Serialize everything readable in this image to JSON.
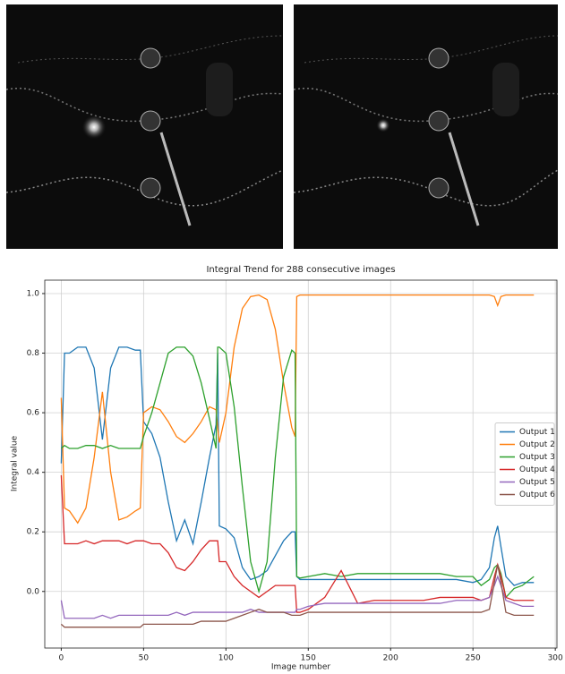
{
  "chart_data": {
    "type": "line",
    "title": "Integral Trend for 288 consecutive images",
    "xlabel": "Image number",
    "ylabel": "Integral value",
    "x": [
      0,
      2,
      5,
      10,
      15,
      20,
      25,
      30,
      35,
      40,
      45,
      48,
      50,
      55,
      60,
      65,
      70,
      75,
      80,
      85,
      90,
      94,
      95,
      96,
      100,
      105,
      110,
      115,
      120,
      125,
      130,
      135,
      140,
      142,
      143,
      145,
      150,
      160,
      170,
      180,
      190,
      200,
      210,
      220,
      230,
      240,
      250,
      255,
      260,
      263,
      265,
      267,
      270,
      275,
      280,
      287
    ],
    "series": [
      {
        "name": "Output 1",
        "color": "#1f77b4",
        "values": [
          0.43,
          0.8,
          0.8,
          0.82,
          0.82,
          0.75,
          0.51,
          0.75,
          0.82,
          0.82,
          0.81,
          0.81,
          0.57,
          0.53,
          0.45,
          0.3,
          0.17,
          0.24,
          0.16,
          0.3,
          0.45,
          0.56,
          0.8,
          0.22,
          0.21,
          0.18,
          0.08,
          0.04,
          0.05,
          0.07,
          0.12,
          0.17,
          0.2,
          0.2,
          0.05,
          0.04,
          0.04,
          0.04,
          0.04,
          0.04,
          0.04,
          0.04,
          0.04,
          0.04,
          0.04,
          0.04,
          0.03,
          0.04,
          0.08,
          0.18,
          0.22,
          0.15,
          0.05,
          0.02,
          0.03,
          0.03
        ]
      },
      {
        "name": "Output 2",
        "color": "#ff7f0e",
        "values": [
          0.65,
          0.28,
          0.27,
          0.23,
          0.28,
          0.45,
          0.67,
          0.4,
          0.24,
          0.25,
          0.27,
          0.28,
          0.6,
          0.62,
          0.61,
          0.57,
          0.52,
          0.5,
          0.53,
          0.57,
          0.62,
          0.61,
          0.55,
          0.5,
          0.6,
          0.82,
          0.95,
          0.99,
          0.995,
          0.98,
          0.88,
          0.7,
          0.55,
          0.52,
          0.99,
          0.995,
          0.995,
          0.995,
          0.995,
          0.995,
          0.995,
          0.995,
          0.995,
          0.995,
          0.995,
          0.995,
          0.995,
          0.995,
          0.995,
          0.99,
          0.96,
          0.99,
          0.995,
          0.995,
          0.995,
          0.995
        ]
      },
      {
        "name": "Output 3",
        "color": "#2ca02c",
        "values": [
          0.48,
          0.49,
          0.48,
          0.48,
          0.49,
          0.49,
          0.48,
          0.49,
          0.48,
          0.48,
          0.48,
          0.48,
          0.52,
          0.6,
          0.7,
          0.8,
          0.82,
          0.82,
          0.79,
          0.7,
          0.58,
          0.48,
          0.82,
          0.82,
          0.8,
          0.62,
          0.35,
          0.1,
          0.0,
          0.1,
          0.45,
          0.72,
          0.81,
          0.8,
          0.05,
          0.045,
          0.05,
          0.06,
          0.05,
          0.06,
          0.06,
          0.06,
          0.06,
          0.06,
          0.06,
          0.05,
          0.05,
          0.02,
          0.04,
          0.08,
          0.09,
          0.06,
          -0.02,
          0.01,
          0.02,
          0.05
        ]
      },
      {
        "name": "Output 4",
        "color": "#d62728",
        "values": [
          0.39,
          0.16,
          0.16,
          0.16,
          0.17,
          0.16,
          0.17,
          0.17,
          0.17,
          0.16,
          0.17,
          0.17,
          0.17,
          0.16,
          0.16,
          0.13,
          0.08,
          0.07,
          0.1,
          0.14,
          0.17,
          0.17,
          0.17,
          0.1,
          0.1,
          0.05,
          0.02,
          0.0,
          -0.02,
          0.0,
          0.02,
          0.02,
          0.02,
          0.02,
          -0.07,
          -0.07,
          -0.06,
          -0.02,
          0.07,
          -0.04,
          -0.03,
          -0.03,
          -0.03,
          -0.03,
          -0.02,
          -0.02,
          -0.02,
          -0.03,
          -0.02,
          0.05,
          0.09,
          0.05,
          -0.02,
          -0.03,
          -0.03,
          -0.03
        ]
      },
      {
        "name": "Output 5",
        "color": "#9467bd",
        "values": [
          -0.03,
          -0.09,
          -0.09,
          -0.09,
          -0.09,
          -0.09,
          -0.08,
          -0.09,
          -0.08,
          -0.08,
          -0.08,
          -0.08,
          -0.08,
          -0.08,
          -0.08,
          -0.08,
          -0.07,
          -0.08,
          -0.07,
          -0.07,
          -0.07,
          -0.07,
          -0.07,
          -0.07,
          -0.07,
          -0.07,
          -0.07,
          -0.06,
          -0.07,
          -0.07,
          -0.07,
          -0.07,
          -0.07,
          -0.07,
          -0.06,
          -0.06,
          -0.05,
          -0.04,
          -0.04,
          -0.04,
          -0.04,
          -0.04,
          -0.04,
          -0.04,
          -0.04,
          -0.03,
          -0.03,
          -0.03,
          -0.02,
          0.02,
          0.05,
          0.02,
          -0.03,
          -0.04,
          -0.05,
          -0.05
        ]
      },
      {
        "name": "Output 6",
        "color": "#8c564b",
        "values": [
          -0.11,
          -0.12,
          -0.12,
          -0.12,
          -0.12,
          -0.12,
          -0.12,
          -0.12,
          -0.12,
          -0.12,
          -0.12,
          -0.12,
          -0.11,
          -0.11,
          -0.11,
          -0.11,
          -0.11,
          -0.11,
          -0.11,
          -0.1,
          -0.1,
          -0.1,
          -0.1,
          -0.1,
          -0.1,
          -0.09,
          -0.08,
          -0.07,
          -0.06,
          -0.07,
          -0.07,
          -0.07,
          -0.08,
          -0.08,
          -0.08,
          -0.08,
          -0.07,
          -0.07,
          -0.07,
          -0.07,
          -0.07,
          -0.07,
          -0.07,
          -0.07,
          -0.07,
          -0.07,
          -0.07,
          -0.07,
          -0.06,
          0.03,
          0.09,
          0.03,
          -0.07,
          -0.08,
          -0.08,
          -0.08
        ]
      }
    ],
    "xlim": [
      -10,
      301
    ],
    "ylim": [
      -0.19,
      1.045
    ],
    "xticks": [
      0,
      50,
      100,
      150,
      200,
      250,
      300
    ],
    "yticks": [
      {
        "value": 0,
        "label": "0.0"
      },
      0.2,
      0.4,
      0.6,
      0.8,
      {
        "value": 1,
        "label": "1.0"
      }
    ],
    "grid": true,
    "legend": "center right"
  }
}
